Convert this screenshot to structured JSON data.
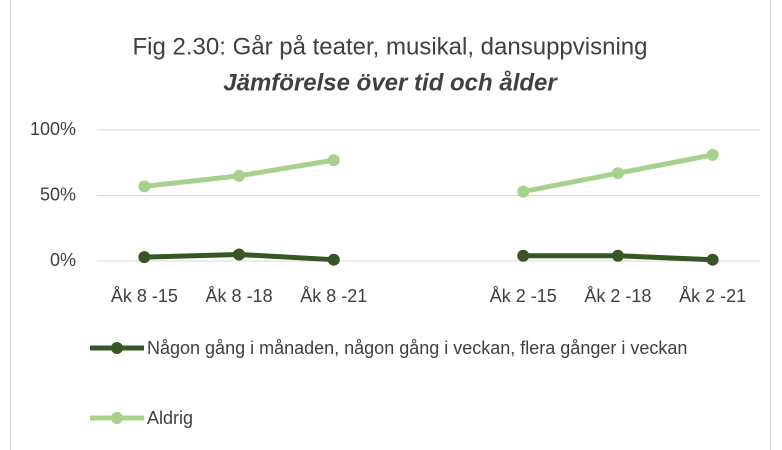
{
  "chart_data": {
    "type": "line",
    "title": "Fig 2.30: Går på teater, musikal, dansuppvisning",
    "subtitle": "Jämförelse över tid och ålder",
    "categories": [
      "Åk 8 -15",
      "Åk 8 -18",
      "Åk 8 -21",
      null,
      "Åk 2 -15",
      "Åk 2 -18",
      "Åk 2 -21"
    ],
    "series": [
      {
        "name": "Någon gång i månaden, någon gång i veckan, flera gånger i veckan",
        "color": "#375623",
        "values": [
          3,
          5,
          1,
          null,
          4,
          4,
          1
        ]
      },
      {
        "name": "Aldrig",
        "color": "#a9d18e",
        "values": [
          57,
          65,
          77,
          null,
          53,
          67,
          81
        ]
      }
    ],
    "ylim": [
      0,
      100
    ],
    "yticks": [
      {
        "value": 0,
        "label": "0%"
      },
      {
        "value": 50,
        "label": "50%"
      },
      {
        "value": 100,
        "label": "100%"
      }
    ],
    "grid": true
  }
}
